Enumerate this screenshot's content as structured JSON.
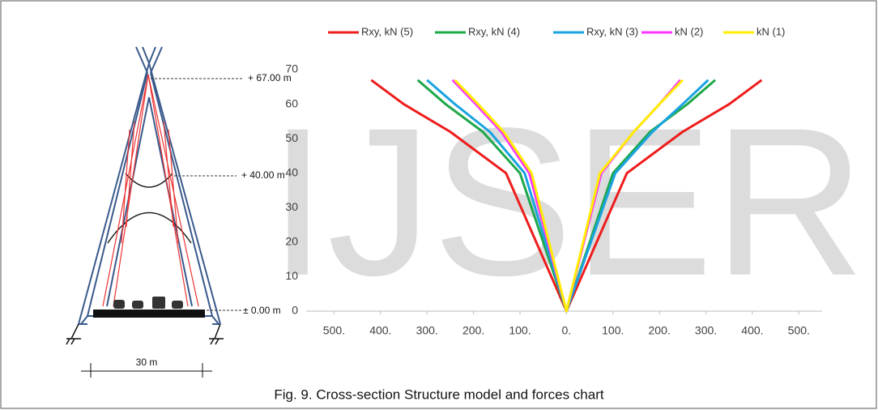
{
  "watermark": "IJSER",
  "diagram": {
    "levels": [
      "+ 67.00 m",
      "+ 40.00 m",
      "± 0.00 m"
    ],
    "span": "30 m"
  },
  "caption": "Fig. 9. Cross-section Structure model and forces chart",
  "chart_data": {
    "type": "line",
    "series": [
      {
        "name": "Rxy, kN (5)",
        "color": "#ee1c1c",
        "x": [
          -420,
          -350,
          -250,
          -130,
          0,
          130,
          250,
          350,
          420
        ],
        "values": [
          67,
          60,
          52,
          40,
          0,
          40,
          52,
          60,
          67
        ]
      },
      {
        "name": "Rxy, kN (4)",
        "color": "#1ea84a",
        "x": [
          -320,
          -260,
          -180,
          -100,
          0,
          100,
          180,
          260,
          320
        ],
        "values": [
          67,
          60,
          52,
          40,
          0,
          40,
          52,
          60,
          67
        ]
      },
      {
        "name": "Rxy, kN (3)",
        "color": "#1aa3e0",
        "x": [
          -300,
          -240,
          -165,
          -90,
          0,
          105,
          185,
          250,
          305
        ],
        "values": [
          67,
          60,
          52,
          40,
          0,
          40,
          52,
          60,
          67
        ]
      },
      {
        "name": "kN (2)",
        "color": "#ff33ff",
        "x": [
          -245,
          -195,
          -140,
          -80,
          0,
          75,
          145,
          200,
          245
        ],
        "values": [
          67,
          60,
          52,
          40,
          0,
          40,
          52,
          60,
          67
        ]
      },
      {
        "name": "kN (1)",
        "color": "#ffee00",
        "x": [
          -240,
          -190,
          -135,
          -75,
          0,
          72,
          145,
          200,
          250
        ],
        "values": [
          67,
          60,
          52,
          40,
          0,
          40,
          52,
          60,
          67
        ]
      }
    ],
    "xlim": [
      -560,
      550
    ],
    "xticks": [
      {
        "value": -500,
        "label": "500."
      },
      {
        "value": -400,
        "label": "400."
      },
      {
        "value": -300,
        "label": "300."
      },
      {
        "value": -200,
        "label": "200."
      },
      {
        "value": -100,
        "label": "100."
      },
      {
        "value": 0,
        "label": "0."
      },
      {
        "value": 100,
        "label": "100."
      },
      {
        "value": 200,
        "label": "200."
      },
      {
        "value": 300,
        "label": "300."
      },
      {
        "value": 400,
        "label": "400."
      },
      {
        "value": 500,
        "label": "500."
      }
    ],
    "ylim": [
      0,
      70
    ],
    "yticks": [
      0,
      10,
      20,
      30,
      40,
      50,
      60,
      70
    ],
    "grid": false
  }
}
